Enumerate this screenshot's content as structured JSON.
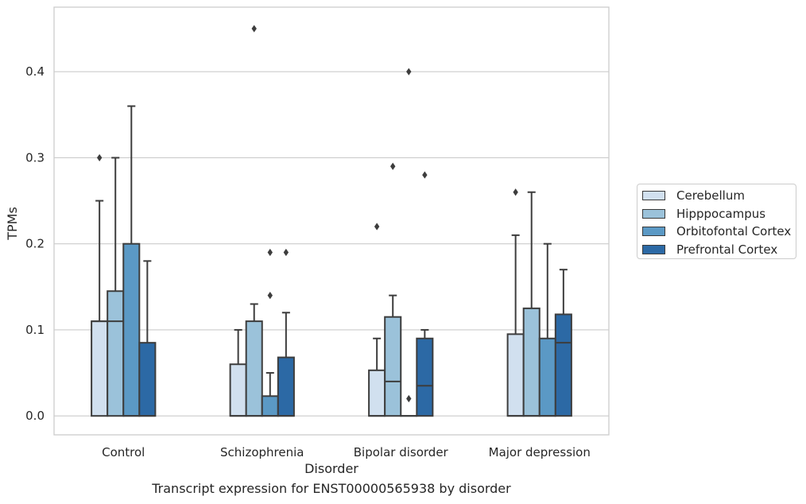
{
  "chart_data": {
    "type": "box",
    "title": "",
    "xlabel": "Disorder",
    "ylabel": "TPMs",
    "caption": "Transcript expression for ENST00000565938 by disorder",
    "categories": [
      "Control",
      "Schizophrenia",
      "Bipolar disorder",
      "Major depression"
    ],
    "ylim": [
      -0.022,
      0.475
    ],
    "yticks": [
      0.0,
      0.1,
      0.2,
      0.3,
      0.4
    ],
    "ytick_labels": [
      "0.0",
      "0.1",
      "0.2",
      "0.3",
      "0.4"
    ],
    "grid": true,
    "legend_position": "right",
    "series": [
      {
        "name": "Cerebellum",
        "color": "#d1e0ef",
        "boxes": [
          {
            "q1": 0.0,
            "median": 0.11,
            "q3": 0.11,
            "whisker_low": 0.0,
            "whisker_high": 0.25,
            "outliers": [
              0.3
            ]
          },
          {
            "q1": 0.0,
            "median": 0.0,
            "q3": 0.06,
            "whisker_low": 0.0,
            "whisker_high": 0.1,
            "outliers": []
          },
          {
            "q1": 0.0,
            "median": 0.0,
            "q3": 0.053,
            "whisker_low": 0.0,
            "whisker_high": 0.09,
            "outliers": [
              0.22
            ]
          },
          {
            "q1": 0.0,
            "median": 0.0,
            "q3": 0.095,
            "whisker_low": 0.0,
            "whisker_high": 0.21,
            "outliers": [
              0.26
            ]
          }
        ]
      },
      {
        "name": "Hipppocampus",
        "color": "#9bc2da",
        "boxes": [
          {
            "q1": 0.0,
            "median": 0.11,
            "q3": 0.145,
            "whisker_low": 0.0,
            "whisker_high": 0.3,
            "outliers": []
          },
          {
            "q1": 0.0,
            "median": 0.0,
            "q3": 0.11,
            "whisker_low": 0.0,
            "whisker_high": 0.13,
            "outliers": [
              0.45
            ]
          },
          {
            "q1": 0.0,
            "median": 0.04,
            "q3": 0.115,
            "whisker_low": 0.0,
            "whisker_high": 0.14,
            "outliers": [
              0.29
            ]
          },
          {
            "q1": 0.0,
            "median": 0.0,
            "q3": 0.125,
            "whisker_low": 0.0,
            "whisker_high": 0.26,
            "outliers": []
          }
        ]
      },
      {
        "name": "Orbitofontal Cortex",
        "color": "#5b99c5",
        "boxes": [
          {
            "q1": 0.0,
            "median": 0.0,
            "q3": 0.2,
            "whisker_low": 0.0,
            "whisker_high": 0.36,
            "outliers": []
          },
          {
            "q1": 0.0,
            "median": 0.0,
            "q3": 0.023,
            "whisker_low": 0.0,
            "whisker_high": 0.05,
            "outliers": [
              0.14,
              0.19
            ]
          },
          {
            "q1": 0.0,
            "median": 0.0,
            "q3": 0.0,
            "whisker_low": 0.0,
            "whisker_high": 0.0,
            "outliers": [
              0.02,
              0.4
            ]
          },
          {
            "q1": 0.0,
            "median": 0.0,
            "q3": 0.09,
            "whisker_low": 0.0,
            "whisker_high": 0.2,
            "outliers": []
          }
        ]
      },
      {
        "name": "Prefrontal Cortex",
        "color": "#2c69a5",
        "boxes": [
          {
            "q1": 0.0,
            "median": 0.0,
            "q3": 0.085,
            "whisker_low": 0.0,
            "whisker_high": 0.18,
            "outliers": []
          },
          {
            "q1": 0.0,
            "median": 0.0,
            "q3": 0.068,
            "whisker_low": 0.0,
            "whisker_high": 0.12,
            "outliers": [
              0.19
            ]
          },
          {
            "q1": 0.0,
            "median": 0.035,
            "q3": 0.09,
            "whisker_low": 0.0,
            "whisker_high": 0.1,
            "outliers": [
              0.28
            ]
          },
          {
            "q1": 0.0,
            "median": 0.085,
            "q3": 0.118,
            "whisker_low": 0.0,
            "whisker_high": 0.17,
            "outliers": []
          }
        ]
      }
    ]
  }
}
